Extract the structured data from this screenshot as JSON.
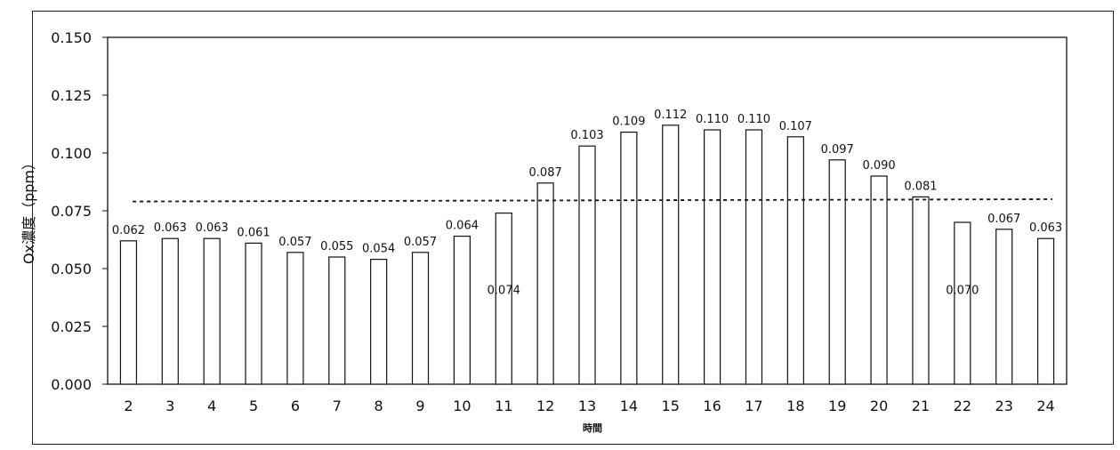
{
  "chart_data": {
    "type": "bar",
    "xlabel": "時間",
    "ylabel": "Ox濃度（ppm）",
    "ylim": [
      0,
      0.15
    ],
    "yticks": [
      "0.000",
      "0.025",
      "0.050",
      "0.075",
      "0.100",
      "0.125",
      "0.150"
    ],
    "grid": false,
    "legend": "none",
    "bar_fill": "#ffffff",
    "bar_stroke": "#111111",
    "categories": [
      "2",
      "3",
      "4",
      "5",
      "6",
      "7",
      "8",
      "9",
      "10",
      "11",
      "12",
      "13",
      "14",
      "15",
      "16",
      "17",
      "18",
      "19",
      "20",
      "21",
      "22",
      "23",
      "24"
    ],
    "values": [
      0.062,
      0.063,
      0.063,
      0.061,
      0.057,
      0.055,
      0.054,
      0.057,
      0.064,
      0.074,
      0.087,
      0.103,
      0.109,
      0.112,
      0.11,
      0.11,
      0.107,
      0.097,
      0.09,
      0.081,
      0.07,
      0.067,
      0.063
    ],
    "value_labels": [
      "0.062",
      "0.063",
      "0.063",
      "0.061",
      "0.057",
      "0.055",
      "0.054",
      "0.057",
      "0.064",
      "0.074",
      "0.087",
      "0.103",
      "0.109",
      "0.112",
      "0.110",
      "0.110",
      "0.107",
      "0.097",
      "0.090",
      "0.081",
      "0.070",
      "0.067",
      "0.063"
    ],
    "inside_label_categories": [
      "11",
      "22"
    ],
    "reference_line": {
      "start_value": 0.079,
      "end_value": 0.08,
      "style": "dashed"
    }
  }
}
